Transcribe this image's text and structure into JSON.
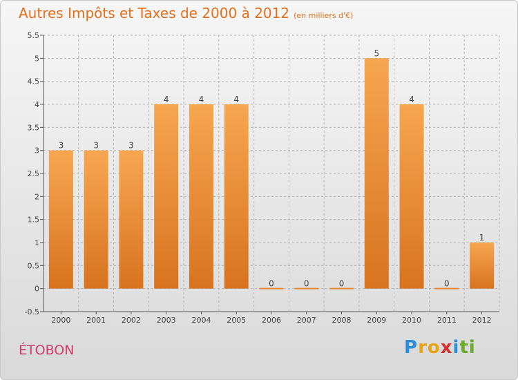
{
  "title": "Autres Impôts et Taxes de 2000 à 2012",
  "subtitle": "(en milliers d'€)",
  "place": "ÉTOBON",
  "logo": {
    "letters": [
      "P",
      "r",
      "o",
      "x",
      "i",
      "t",
      "i"
    ],
    "colors": [
      "#2a8fd8",
      "#e8a317",
      "#e8a317",
      "#d3302f",
      "#2a8fd8",
      "#6aaa2a",
      "#6aaa2a"
    ]
  },
  "colors": {
    "title": "#e2701a",
    "bar_light": "#f6a650",
    "bar_dark": "#d8731f",
    "place": "#d23a6a"
  },
  "chart_data": {
    "type": "bar",
    "categories": [
      "2000",
      "2001",
      "2002",
      "2003",
      "2004",
      "2005",
      "2006",
      "2007",
      "2008",
      "2009",
      "2010",
      "2011",
      "2012"
    ],
    "values": [
      3,
      3,
      3,
      4,
      4,
      4,
      0,
      0,
      0,
      5,
      4,
      0,
      1
    ],
    "value_labels": [
      "3",
      "3",
      "3",
      "4",
      "4",
      "4",
      "0",
      "0",
      "0",
      "5",
      "4",
      "0",
      "1"
    ],
    "ylim": [
      -0.5,
      5.5
    ],
    "yticks": [
      -0.5,
      0,
      0.5,
      1,
      1.5,
      2,
      2.5,
      3,
      3.5,
      4,
      4.5,
      5,
      5.5
    ],
    "ytick_labels": [
      "-0.5",
      "0",
      "0.5",
      "1",
      "1.5",
      "2",
      "2.5",
      "3",
      "3.5",
      "4",
      "4.5",
      "5",
      "5.5"
    ],
    "grid": "horizontal dashed",
    "xlabel": "",
    "ylabel": ""
  }
}
